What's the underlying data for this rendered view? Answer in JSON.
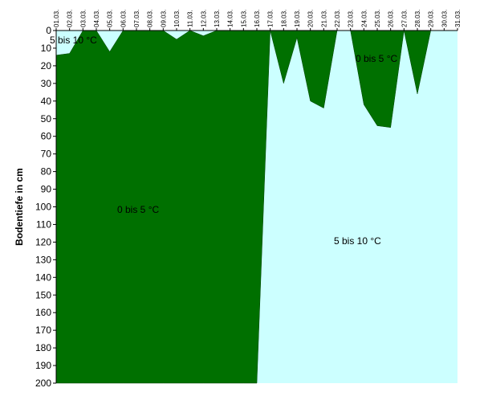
{
  "chart_data": {
    "type": "area",
    "xlabel": "",
    "ylabel": "Bodentiefe in cm",
    "y_inverted": true,
    "ylim": [
      0,
      200
    ],
    "ytick_step": 10,
    "categories": [
      "01.03.",
      "02.03.",
      "03.03.",
      "04.03.",
      "05.03.",
      "06.03.",
      "07.03.",
      "08.03.",
      "09.03.",
      "10.03.",
      "11.03.",
      "12.03.",
      "13.03.",
      "14.03.",
      "15.03.",
      "16.03.",
      "17.03.",
      "18.03.",
      "19.03.",
      "20.03.",
      "21.03.",
      "22.03.",
      "23.03.",
      "24.03.",
      "25.03.",
      "26.03.",
      "27.03.",
      "28.03.",
      "29.03.",
      "30.03.",
      "31.03."
    ],
    "series": [
      {
        "name": "0 bis 5 °C",
        "color": "#007000",
        "upper_boundary_depth_cm": [
          14,
          13,
          0,
          0,
          12,
          0,
          0,
          0,
          0,
          5,
          0,
          3,
          0,
          0,
          0,
          0,
          0,
          30,
          4,
          40,
          44,
          0,
          0,
          42,
          54,
          55,
          0,
          36,
          0,
          0,
          0
        ],
        "lower_boundary_depth_cm": [
          200,
          200,
          200,
          200,
          200,
          200,
          200,
          200,
          200,
          200,
          200,
          200,
          200,
          200,
          200,
          200,
          0,
          0,
          0,
          0,
          0,
          0,
          0,
          0,
          0,
          0,
          0,
          0,
          0,
          0,
          0
        ],
        "note_lower_boundary": "front drops from 0 cm at 17.03. to 200 cm at 18.03."
      },
      {
        "name": "5 bis 10 °C",
        "color": "#ccffff",
        "occupies": "regions above upper boundary and below lower boundary"
      }
    ],
    "annotations": [
      {
        "text": "5 bis 10 °C",
        "day": "01.03.",
        "depth": 3
      },
      {
        "text": "0 bis 5 °C",
        "day": "06.03.",
        "depth": 100
      },
      {
        "text": "5 bis 10 °C",
        "day": "24.03.",
        "depth": 120
      },
      {
        "text": "0 bis 5 °C",
        "day": "24.03.",
        "depth": 10
      }
    ],
    "grid": false,
    "legend": "none"
  }
}
